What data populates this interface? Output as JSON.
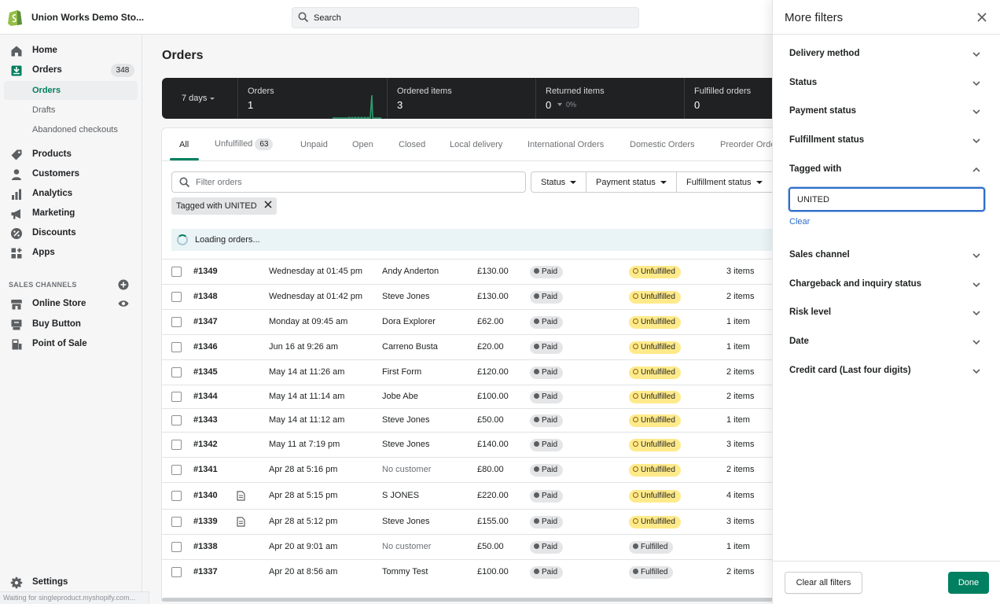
{
  "topbar": {
    "store_name": "Union Works Demo Sto...",
    "search_placeholder": "Search"
  },
  "sidebar": {
    "home": "Home",
    "orders": "Orders",
    "orders_count": "348",
    "sub_orders": "Orders",
    "sub_drafts": "Drafts",
    "sub_abandoned": "Abandoned checkouts",
    "products": "Products",
    "customers": "Customers",
    "analytics": "Analytics",
    "marketing": "Marketing",
    "discounts": "Discounts",
    "apps": "Apps",
    "sales_channels_title": "SALES CHANNELS",
    "online_store": "Online Store",
    "buy_button": "Buy Button",
    "point_of_sale": "Point of Sale",
    "settings": "Settings",
    "status_url": "Waiting for singleproduct.myshopify.com..."
  },
  "main": {
    "title": "Orders",
    "stats": {
      "range": "7 days",
      "orders_label": "Orders",
      "orders_value": "1",
      "ordered_items_label": "Ordered items",
      "ordered_items_value": "3",
      "returned_items_label": "Returned items",
      "returned_items_value": "0",
      "returned_items_pct": "0%",
      "fulfilled_label": "Fulfilled orders",
      "fulfilled_value": "0"
    },
    "tabs": {
      "all": "All",
      "unfulfilled": "Unfulfilled",
      "unfulfilled_count": "63",
      "unpaid": "Unpaid",
      "open": "Open",
      "closed": "Closed",
      "local_delivery": "Local delivery",
      "international": "International Orders",
      "domestic": "Domestic Orders",
      "preorder": "Preorder Orde"
    },
    "filter_placeholder": "Filter orders",
    "filter_status": "Status",
    "filter_payment": "Payment status",
    "filter_fulfillment": "Fulfillment status",
    "applied_tag": "Tagged with UNITED",
    "loading": "Loading orders...",
    "rows": [
      {
        "num": "#1349",
        "date": "Wednesday at 01:45 pm",
        "customer": "Andy Anderton",
        "total": "£130.00",
        "payment": "Paid",
        "fulfillment": "Unfulfilled",
        "items": "3 items"
      },
      {
        "num": "#1348",
        "date": "Wednesday at 01:42 pm",
        "customer": "Steve Jones",
        "total": "£130.00",
        "payment": "Paid",
        "fulfillment": "Unfulfilled",
        "items": "2 items"
      },
      {
        "num": "#1347",
        "date": "Monday at 09:45 am",
        "customer": "Dora Explorer",
        "total": "£62.00",
        "payment": "Paid",
        "fulfillment": "Unfulfilled",
        "items": "1 item"
      },
      {
        "num": "#1346",
        "date": "Jun 16 at 9:26 am",
        "customer": "Carreno Busta",
        "total": "£20.00",
        "payment": "Paid",
        "fulfillment": "Unfulfilled",
        "items": "1 item"
      },
      {
        "num": "#1345",
        "date": "May 14 at 11:26 am",
        "customer": "First Form",
        "total": "£120.00",
        "payment": "Paid",
        "fulfillment": "Unfulfilled",
        "items": "2 items"
      },
      {
        "num": "#1344",
        "date": "May 14 at 11:14 am",
        "customer": "Jobe Abe",
        "total": "£100.00",
        "payment": "Paid",
        "fulfillment": "Unfulfilled",
        "items": "2 items"
      },
      {
        "num": "#1343",
        "date": "May 14 at 11:12 am",
        "customer": "Steve Jones",
        "total": "£50.00",
        "payment": "Paid",
        "fulfillment": "Unfulfilled",
        "items": "1 item"
      },
      {
        "num": "#1342",
        "date": "May 11 at 7:19 pm",
        "customer": "Steve Jones",
        "total": "£140.00",
        "payment": "Paid",
        "fulfillment": "Unfulfilled",
        "items": "3 items"
      },
      {
        "num": "#1341",
        "date": "Apr 28 at 5:16 pm",
        "customer": "No customer",
        "total": "£80.00",
        "payment": "Paid",
        "fulfillment": "Unfulfilled",
        "items": "2 items"
      },
      {
        "num": "#1340",
        "date": "Apr 28 at 5:15 pm",
        "customer": "S JONES",
        "total": "£220.00",
        "payment": "Paid",
        "fulfillment": "Unfulfilled",
        "items": "4 items"
      },
      {
        "num": "#1339",
        "date": "Apr 28 at 5:12 pm",
        "customer": "Steve Jones",
        "total": "£155.00",
        "payment": "Paid",
        "fulfillment": "Unfulfilled",
        "items": "3 items"
      },
      {
        "num": "#1338",
        "date": "Apr 20 at 9:01 am",
        "customer": "No customer",
        "total": "£50.00",
        "payment": "Paid",
        "fulfillment": "Fulfilled",
        "items": "1 item"
      },
      {
        "num": "#1337",
        "date": "Apr 20 at 8:56 am",
        "customer": "Tommy Test",
        "total": "£100.00",
        "payment": "Paid",
        "fulfillment": "Fulfilled",
        "items": "2 items"
      }
    ]
  },
  "panel": {
    "title": "More filters",
    "delivery_method": "Delivery method",
    "status": "Status",
    "payment_status": "Payment status",
    "fulfillment_status": "Fulfillment status",
    "tagged_with": "Tagged with",
    "tag_value": "UNITED",
    "clear": "Clear",
    "sales_channel": "Sales channel",
    "chargeback": "Chargeback and inquiry status",
    "risk_level": "Risk level",
    "date": "Date",
    "credit_card": "Credit card (Last four digits)",
    "clear_all": "Clear all filters",
    "done": "Done"
  }
}
